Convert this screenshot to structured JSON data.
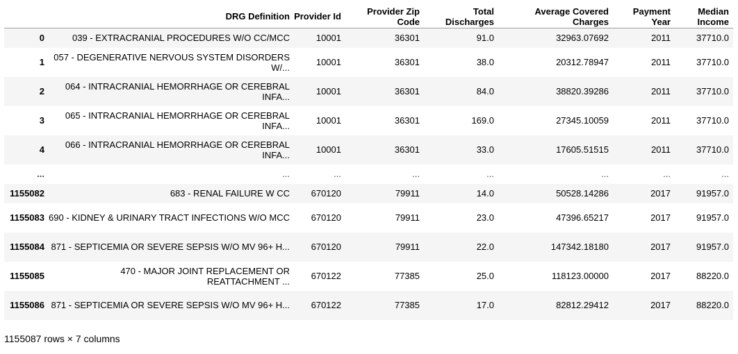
{
  "table": {
    "columns": [
      {
        "label": "",
        "name": "index-header"
      },
      {
        "label": "DRG Definition",
        "name": "col-drg-definition"
      },
      {
        "label": "Provider Id",
        "name": "col-provider-id"
      },
      {
        "label": "Provider Zip Code",
        "name": "col-provider-zip"
      },
      {
        "label": "Total Discharges",
        "name": "col-total-discharges"
      },
      {
        "label": "Average Covered Charges",
        "name": "col-avg-covered-charges"
      },
      {
        "label": "Payment Year",
        "name": "col-payment-year"
      },
      {
        "label": "Median Income",
        "name": "col-median-income"
      }
    ],
    "rows": [
      {
        "index": "0",
        "drg": "039 - EXTRACRANIAL PROCEDURES W/O CC/MCC",
        "provider_id": "10001",
        "zip": "36301",
        "discharges": "91.0",
        "charges": "32963.07692",
        "year": "2011",
        "income": "37710.0"
      },
      {
        "index": "1",
        "drg": "057 - DEGENERATIVE NERVOUS SYSTEM DISORDERS W/...",
        "provider_id": "10001",
        "zip": "36301",
        "discharges": "38.0",
        "charges": "20312.78947",
        "year": "2011",
        "income": "37710.0"
      },
      {
        "index": "2",
        "drg": "064 - INTRACRANIAL HEMORRHAGE OR CEREBRAL INFA...",
        "provider_id": "10001",
        "zip": "36301",
        "discharges": "84.0",
        "charges": "38820.39286",
        "year": "2011",
        "income": "37710.0"
      },
      {
        "index": "3",
        "drg": "065 - INTRACRANIAL HEMORRHAGE OR CEREBRAL INFA...",
        "provider_id": "10001",
        "zip": "36301",
        "discharges": "169.0",
        "charges": "27345.10059",
        "year": "2011",
        "income": "37710.0"
      },
      {
        "index": "4",
        "drg": "066 - INTRACRANIAL HEMORRHAGE OR CEREBRAL INFA...",
        "provider_id": "10001",
        "zip": "36301",
        "discharges": "33.0",
        "charges": "17605.51515",
        "year": "2011",
        "income": "37710.0"
      },
      {
        "index": "...",
        "drg": "...",
        "provider_id": "...",
        "zip": "...",
        "discharges": "...",
        "charges": "...",
        "year": "...",
        "income": "..."
      },
      {
        "index": "1155082",
        "drg": "683 - RENAL FAILURE W CC",
        "provider_id": "670120",
        "zip": "79911",
        "discharges": "14.0",
        "charges": "50528.14286",
        "year": "2017",
        "income": "91957.0"
      },
      {
        "index": "1155083",
        "drg": "690 - KIDNEY & URINARY TRACT INFECTIONS W/O MCC",
        "provider_id": "670120",
        "zip": "79911",
        "discharges": "23.0",
        "charges": "47396.65217",
        "year": "2017",
        "income": "91957.0"
      },
      {
        "index": "1155084",
        "drg": "871 - SEPTICEMIA OR SEVERE SEPSIS W/O MV 96+ H...",
        "provider_id": "670120",
        "zip": "79911",
        "discharges": "22.0",
        "charges": "147342.18180",
        "year": "2017",
        "income": "91957.0"
      },
      {
        "index": "1155085",
        "drg": "470 - MAJOR JOINT REPLACEMENT OR REATTACHMENT ...",
        "provider_id": "670122",
        "zip": "77385",
        "discharges": "25.0",
        "charges": "118123.00000",
        "year": "2017",
        "income": "88220.0"
      },
      {
        "index": "1155086",
        "drg": "871 - SEPTICEMIA OR SEVERE SEPSIS W/O MV 96+ H...",
        "provider_id": "670122",
        "zip": "77385",
        "discharges": "17.0",
        "charges": "82812.29412",
        "year": "2017",
        "income": "88220.0"
      }
    ]
  },
  "footer": {
    "summary": "1155087 rows × 7 columns"
  }
}
